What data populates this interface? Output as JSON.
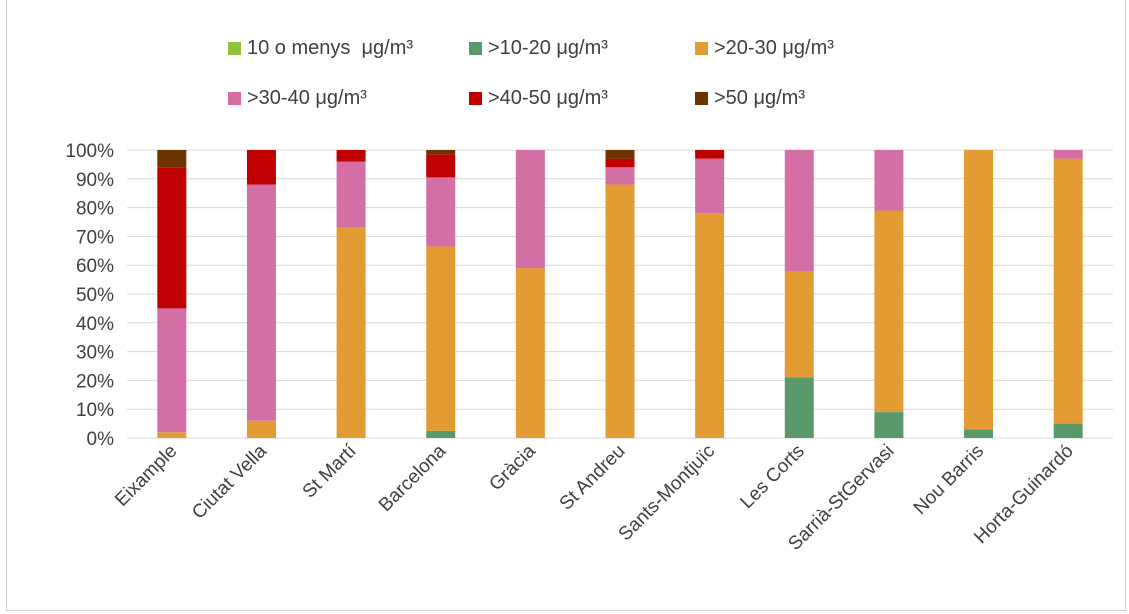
{
  "chart_data": {
    "type": "bar",
    "stacked": true,
    "title": "",
    "ylim": [
      0,
      100
    ],
    "yticks": [
      "0%",
      "10%",
      "20%",
      "30%",
      "40%",
      "50%",
      "60%",
      "70%",
      "80%",
      "90%",
      "100%"
    ],
    "legend_placement": "top",
    "categories": [
      "Eixample",
      "Ciutat Vella",
      "St Martí",
      "Barcelona",
      "Gràcia",
      "St Andreu",
      "Sants-Montjuïc",
      "Les Corts",
      "Sarrià-StGervasi",
      "Nou Barris",
      "Horta-Guinardó"
    ],
    "series": [
      {
        "name": "10 o menys  μg/m³",
        "color": "#92c13c",
        "values": [
          0,
          0,
          0,
          0,
          0,
          0,
          0,
          0,
          0,
          0,
          0
        ]
      },
      {
        "name": ">10-20 μg/m³",
        "color": "#5a9a6a",
        "values": [
          0,
          0,
          0,
          2.5,
          0,
          0,
          0,
          21,
          9,
          3,
          5
        ]
      },
      {
        "name": ">20-30 μg/m³",
        "color": "#e39c33",
        "values": [
          2,
          6,
          73,
          64,
          59,
          88,
          78,
          37,
          70,
          97,
          92
        ]
      },
      {
        "name": ">30-40 μg/m³",
        "color": "#d46fa6",
        "values": [
          43,
          82,
          23,
          24,
          41,
          6,
          19,
          42,
          21,
          0,
          3
        ]
      },
      {
        "name": ">40-50 μg/m³",
        "color": "#c00000",
        "values": [
          49,
          12,
          4,
          8,
          0,
          3,
          3,
          0,
          0,
          0,
          0
        ]
      },
      {
        "name": ">50 μg/m³",
        "color": "#6b3400",
        "values": [
          6,
          0,
          0,
          1.5,
          0,
          3,
          0,
          0,
          0,
          0,
          0
        ]
      }
    ]
  }
}
